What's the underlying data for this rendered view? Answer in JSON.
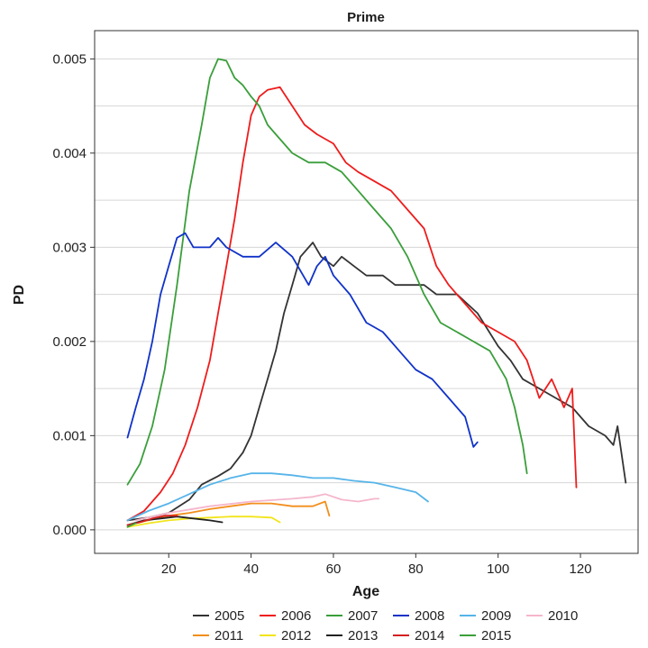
{
  "chart_data": {
    "type": "line",
    "title": "Prime",
    "xlabel": "Age",
    "ylabel": "PD",
    "xlim": [
      2,
      134
    ],
    "ylim": [
      -0.00025,
      0.0053
    ],
    "xticks": [
      20,
      40,
      60,
      80,
      100,
      120
    ],
    "xtick_labels": [
      "20",
      "40",
      "60",
      "80",
      "100",
      "120"
    ],
    "yticks": [
      0,
      0.001,
      0.002,
      0.003,
      0.004,
      0.005
    ],
    "ytick_labels": [
      "0.000",
      "0.001",
      "0.002",
      "0.003",
      "0.004",
      "0.005"
    ],
    "grid": "horizontal",
    "legend_position": "bottom",
    "series": [
      {
        "name": "2005",
        "color": "#333333",
        "points": [
          [
            10,
            0.0001
          ],
          [
            15,
            0.00013
          ],
          [
            20,
            0.00018
          ],
          [
            25,
            0.00032
          ],
          [
            28,
            0.00048
          ],
          [
            32,
            0.00057
          ],
          [
            35,
            0.00065
          ],
          [
            38,
            0.00082
          ],
          [
            40,
            0.001
          ],
          [
            42,
            0.0013
          ],
          [
            44,
            0.0016
          ],
          [
            46,
            0.0019
          ],
          [
            48,
            0.0023
          ],
          [
            50,
            0.0026
          ],
          [
            52,
            0.0029
          ],
          [
            55,
            0.00305
          ],
          [
            57,
            0.0029
          ],
          [
            60,
            0.0028
          ],
          [
            62,
            0.0029
          ],
          [
            65,
            0.0028
          ],
          [
            68,
            0.0027
          ],
          [
            72,
            0.0027
          ],
          [
            75,
            0.0026
          ],
          [
            78,
            0.0026
          ],
          [
            82,
            0.0026
          ],
          [
            85,
            0.0025
          ],
          [
            90,
            0.0025
          ],
          [
            95,
            0.0023
          ],
          [
            100,
            0.00195
          ],
          [
            103,
            0.0018
          ],
          [
            106,
            0.0016
          ],
          [
            110,
            0.0015
          ],
          [
            114,
            0.0014
          ],
          [
            118,
            0.0013
          ],
          [
            122,
            0.0011
          ],
          [
            126,
            0.001
          ],
          [
            128,
            0.0009
          ],
          [
            129,
            0.0011
          ],
          [
            131,
            0.0005
          ]
        ]
      },
      {
        "name": "2006",
        "color": "#ee1c1c",
        "points": [
          [
            10,
            0.0001
          ],
          [
            14,
            0.0002
          ],
          [
            18,
            0.0004
          ],
          [
            21,
            0.0006
          ],
          [
            24,
            0.0009
          ],
          [
            27,
            0.0013
          ],
          [
            30,
            0.0018
          ],
          [
            32,
            0.0023
          ],
          [
            34,
            0.0028
          ],
          [
            36,
            0.0033
          ],
          [
            38,
            0.0039
          ],
          [
            40,
            0.0044
          ],
          [
            42,
            0.0046
          ],
          [
            44,
            0.00467
          ],
          [
            47,
            0.0047
          ],
          [
            50,
            0.0045
          ],
          [
            53,
            0.0043
          ],
          [
            56,
            0.0042
          ],
          [
            60,
            0.0041
          ],
          [
            63,
            0.0039
          ],
          [
            66,
            0.0038
          ],
          [
            70,
            0.0037
          ],
          [
            74,
            0.0036
          ],
          [
            78,
            0.0034
          ],
          [
            82,
            0.0032
          ],
          [
            85,
            0.0028
          ],
          [
            88,
            0.0026
          ],
          [
            92,
            0.0024
          ],
          [
            96,
            0.0022
          ],
          [
            100,
            0.0021
          ],
          [
            104,
            0.002
          ],
          [
            107,
            0.0018
          ],
          [
            110,
            0.0014
          ],
          [
            113,
            0.0016
          ],
          [
            116,
            0.0013
          ],
          [
            118,
            0.0015
          ],
          [
            119,
            0.00045
          ]
        ]
      },
      {
        "name": "2007",
        "color": "#3a9e3a",
        "points": [
          [
            10,
            0.00048
          ],
          [
            13,
            0.0007
          ],
          [
            16,
            0.0011
          ],
          [
            19,
            0.0017
          ],
          [
            22,
            0.0026
          ],
          [
            25,
            0.0036
          ],
          [
            28,
            0.0043
          ],
          [
            30,
            0.0048
          ],
          [
            32,
            0.005
          ],
          [
            34,
            0.00498
          ],
          [
            36,
            0.0048
          ],
          [
            38,
            0.00472
          ],
          [
            40,
            0.0046
          ],
          [
            42,
            0.0045
          ],
          [
            44,
            0.0043
          ],
          [
            46,
            0.0042
          ],
          [
            48,
            0.0041
          ],
          [
            50,
            0.004
          ],
          [
            54,
            0.0039
          ],
          [
            58,
            0.0039
          ],
          [
            62,
            0.0038
          ],
          [
            66,
            0.0036
          ],
          [
            70,
            0.0034
          ],
          [
            74,
            0.0032
          ],
          [
            78,
            0.0029
          ],
          [
            82,
            0.0025
          ],
          [
            86,
            0.0022
          ],
          [
            90,
            0.0021
          ],
          [
            94,
            0.002
          ],
          [
            98,
            0.0019
          ],
          [
            102,
            0.0016
          ],
          [
            104,
            0.0013
          ],
          [
            106,
            0.0009
          ],
          [
            107,
            0.0006
          ]
        ]
      },
      {
        "name": "2008",
        "color": "#1032c8",
        "points": [
          [
            10,
            0.00098
          ],
          [
            12,
            0.0013
          ],
          [
            14,
            0.0016
          ],
          [
            16,
            0.002
          ],
          [
            18,
            0.0025
          ],
          [
            20,
            0.0028
          ],
          [
            22,
            0.0031
          ],
          [
            24,
            0.00315
          ],
          [
            26,
            0.003
          ],
          [
            30,
            0.003
          ],
          [
            32,
            0.0031
          ],
          [
            34,
            0.003
          ],
          [
            38,
            0.0029
          ],
          [
            42,
            0.0029
          ],
          [
            46,
            0.00305
          ],
          [
            50,
            0.0029
          ],
          [
            54,
            0.0026
          ],
          [
            56,
            0.0028
          ],
          [
            58,
            0.0029
          ],
          [
            60,
            0.0027
          ],
          [
            64,
            0.0025
          ],
          [
            68,
            0.0022
          ],
          [
            72,
            0.0021
          ],
          [
            76,
            0.0019
          ],
          [
            80,
            0.0017
          ],
          [
            84,
            0.0016
          ],
          [
            88,
            0.0014
          ],
          [
            92,
            0.0012
          ],
          [
            94,
            0.00088
          ],
          [
            95,
            0.00093
          ]
        ]
      },
      {
        "name": "2009",
        "color": "#56b4e9",
        "points": [
          [
            10,
            0.0001
          ],
          [
            15,
            0.0002
          ],
          [
            20,
            0.00028
          ],
          [
            25,
            0.00038
          ],
          [
            30,
            0.00048
          ],
          [
            35,
            0.00055
          ],
          [
            40,
            0.0006
          ],
          [
            45,
            0.0006
          ],
          [
            50,
            0.00058
          ],
          [
            55,
            0.00055
          ],
          [
            60,
            0.00055
          ],
          [
            65,
            0.00052
          ],
          [
            70,
            0.0005
          ],
          [
            75,
            0.00045
          ],
          [
            80,
            0.0004
          ],
          [
            83,
            0.0003
          ]
        ]
      },
      {
        "name": "2010",
        "color": "#f5b6cc",
        "points": [
          [
            12,
            0.0001
          ],
          [
            20,
            0.00018
          ],
          [
            30,
            0.00025
          ],
          [
            40,
            0.0003
          ],
          [
            50,
            0.00033
          ],
          [
            55,
            0.00035
          ],
          [
            58,
            0.00038
          ],
          [
            62,
            0.00032
          ],
          [
            66,
            0.0003
          ],
          [
            70,
            0.00033
          ],
          [
            71,
            0.00033
          ]
        ]
      },
      {
        "name": "2011",
        "color": "#f28e1c",
        "points": [
          [
            10,
            5e-05
          ],
          [
            15,
            0.0001
          ],
          [
            20,
            0.00015
          ],
          [
            25,
            0.00018
          ],
          [
            30,
            0.00022
          ],
          [
            35,
            0.00025
          ],
          [
            40,
            0.00028
          ],
          [
            45,
            0.00028
          ],
          [
            50,
            0.00025
          ],
          [
            55,
            0.00025
          ],
          [
            58,
            0.0003
          ],
          [
            59,
            0.00015
          ]
        ]
      },
      {
        "name": "2012",
        "color": "#f2e41c",
        "points": [
          [
            10,
            3e-05
          ],
          [
            15,
            7e-05
          ],
          [
            20,
            0.0001
          ],
          [
            25,
            0.00012
          ],
          [
            30,
            0.00013
          ],
          [
            35,
            0.00014
          ],
          [
            40,
            0.00014
          ],
          [
            45,
            0.00013
          ],
          [
            47,
            8e-05
          ]
        ]
      },
      {
        "name": "2013",
        "color": "#222222",
        "points": [
          [
            10,
            5e-05
          ],
          [
            14,
            0.0001
          ],
          [
            18,
            0.00012
          ],
          [
            22,
            0.00014
          ],
          [
            26,
            0.00012
          ],
          [
            30,
            0.0001
          ],
          [
            33,
            8e-05
          ]
        ]
      },
      {
        "name": "2014",
        "color": "#d42020",
        "points": [
          [
            10,
            5e-05
          ],
          [
            13,
            8e-05
          ],
          [
            16,
            0.00012
          ],
          [
            19,
            0.00015
          ],
          [
            22,
            0.00015
          ]
        ]
      },
      {
        "name": "2015",
        "color": "#3aa03a",
        "points": [
          [
            10,
            3e-05
          ],
          [
            11,
            5e-05
          ],
          [
            12,
            7e-05
          ]
        ]
      }
    ]
  },
  "legend": {
    "rows": [
      [
        "2005",
        "2006",
        "2007",
        "2008",
        "2009",
        "2010"
      ],
      [
        "2011",
        "2012",
        "2013",
        "2014",
        "2015"
      ]
    ]
  }
}
